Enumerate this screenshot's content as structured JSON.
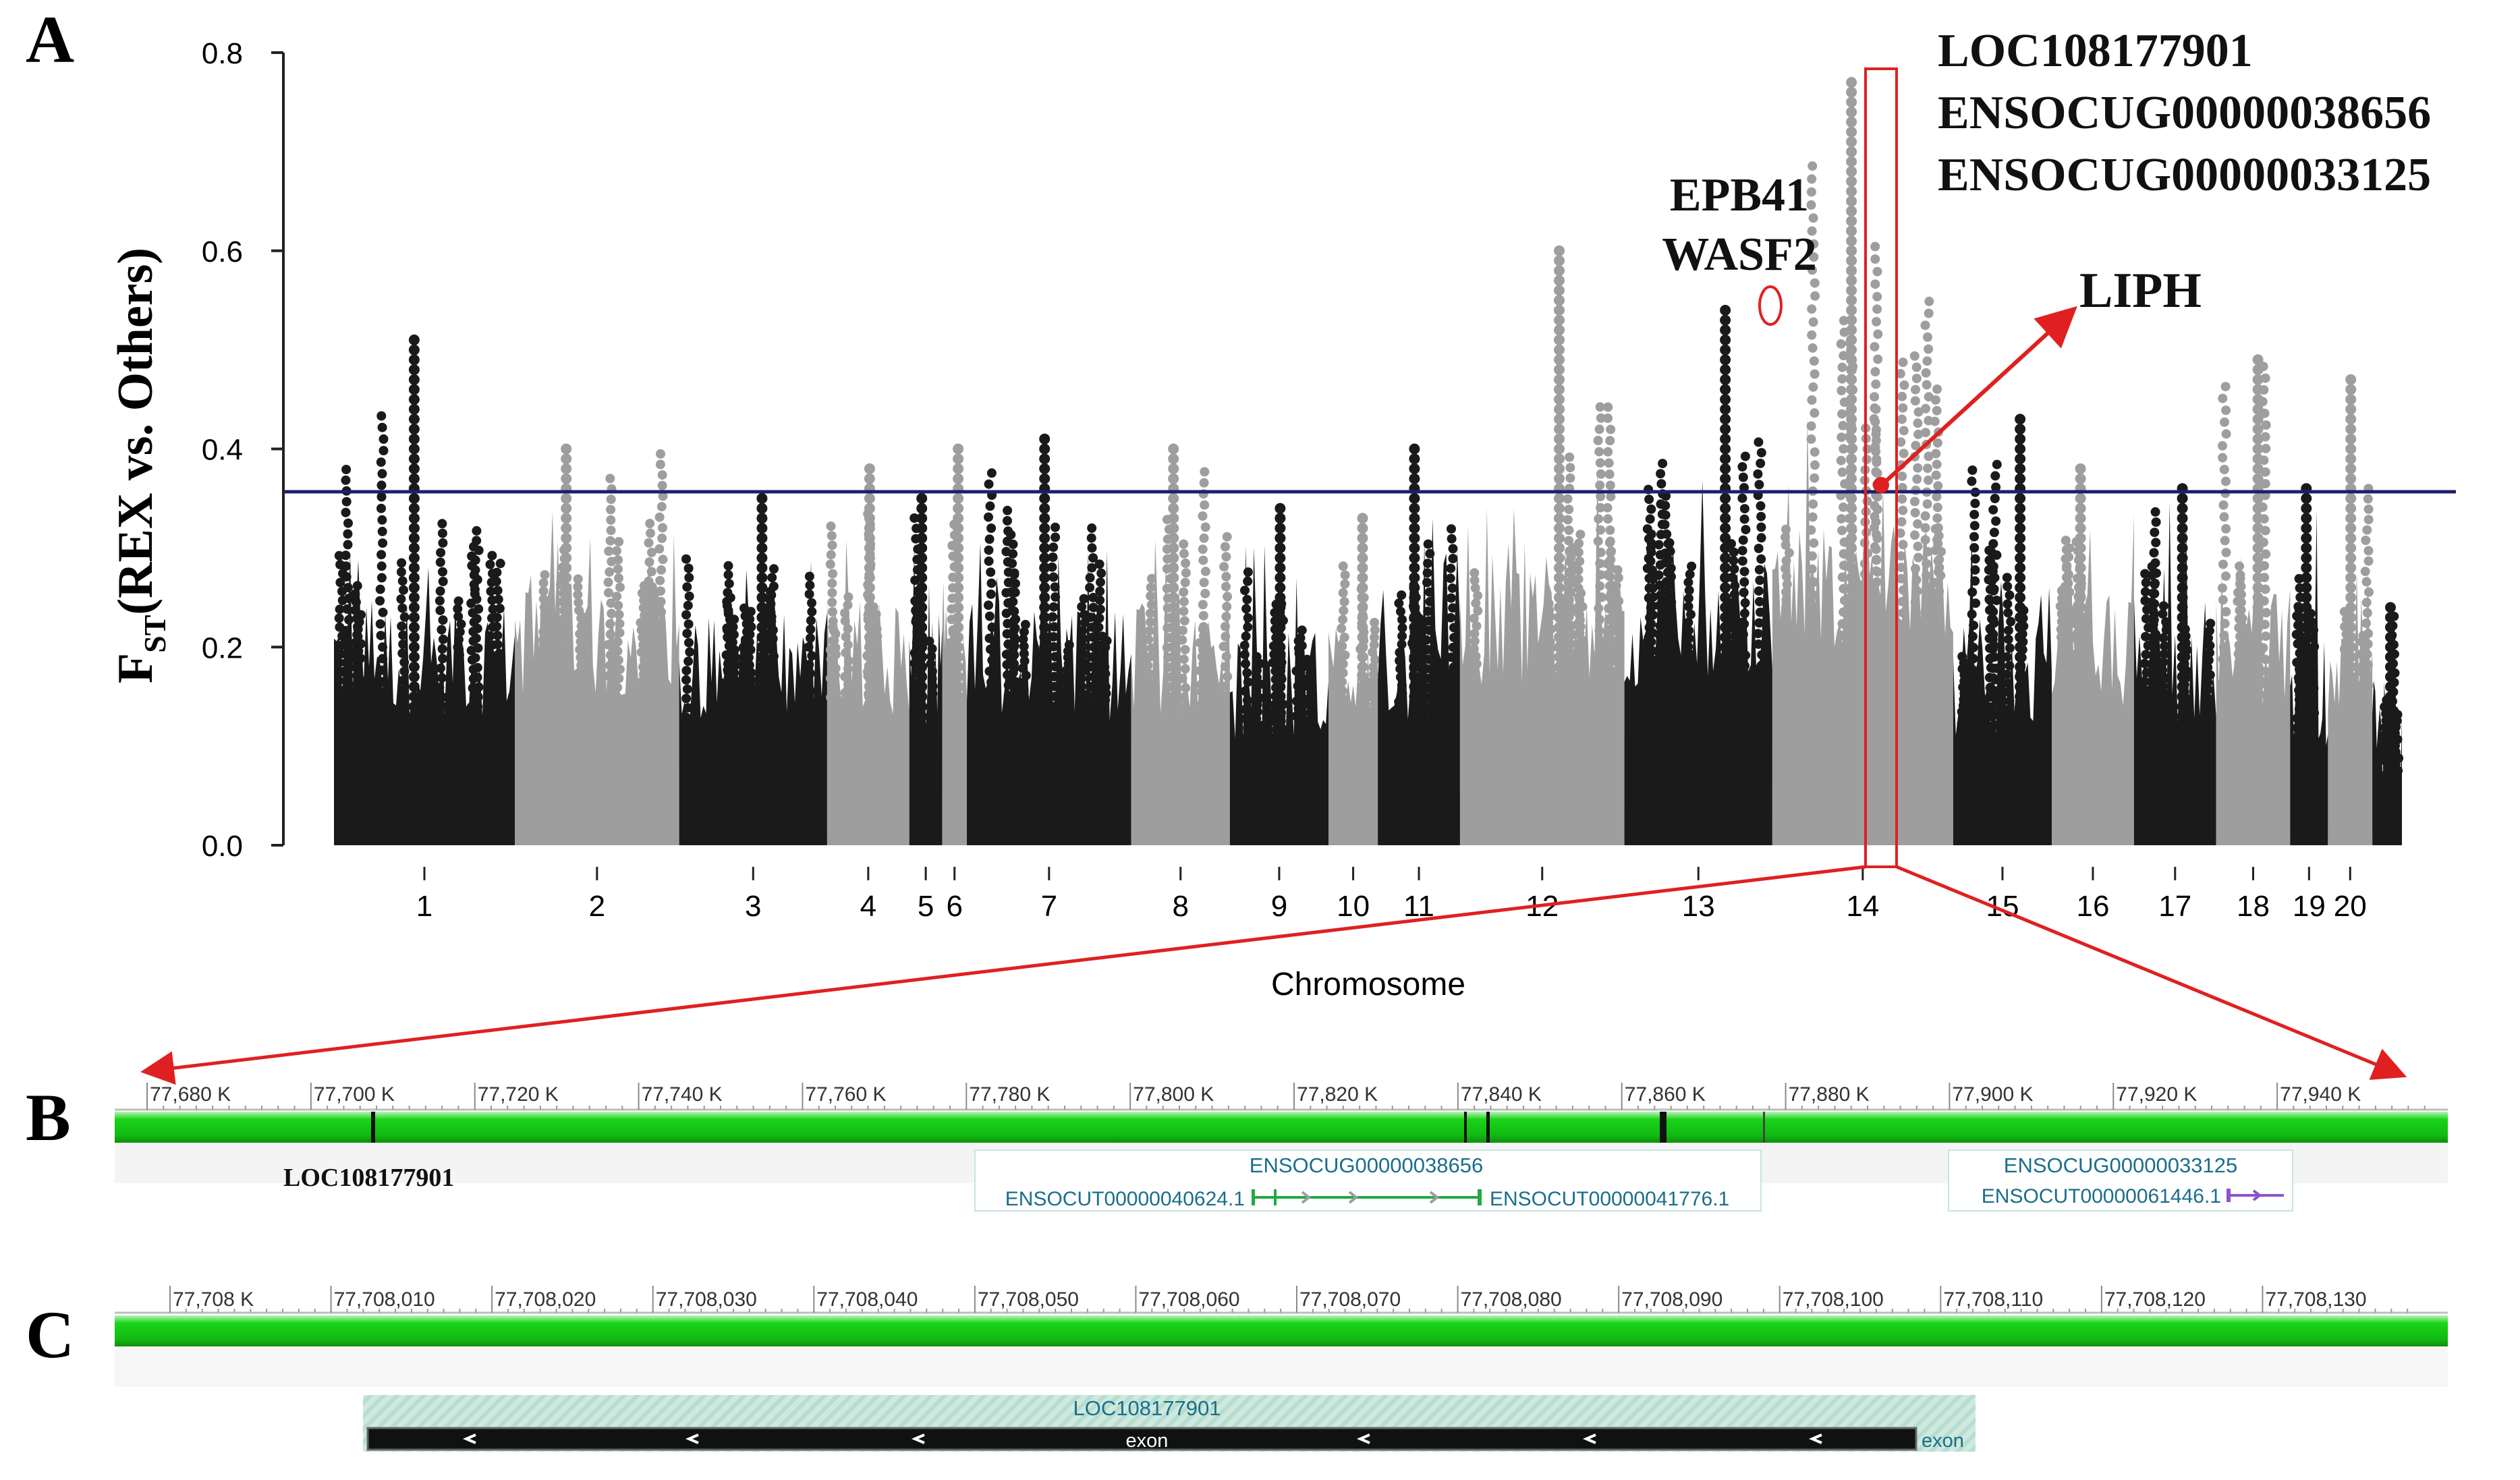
{
  "panel_labels": {
    "a": "A",
    "b": "B",
    "c": "C"
  },
  "chart_data": {
    "type": "scatter",
    "subtype": "manhattan",
    "title": "",
    "xlabel": "Chromosome",
    "ylabel_main": "F",
    "ylabel_sub": "ST",
    "ylabel_rest": "(REX vs. Others)",
    "ylim": [
      0,
      0.8
    ],
    "yticks": [
      "0.0",
      "0.2",
      "0.4",
      "0.6",
      "0.8"
    ],
    "threshold": 0.355,
    "chromosomes": [
      {
        "label": "1",
        "max": 0.515,
        "base": 0.13,
        "shade": "dark"
      },
      {
        "label": "2",
        "max": 0.41,
        "base": 0.15,
        "shade": "light"
      },
      {
        "label": "3",
        "max": 0.36,
        "base": 0.12,
        "shade": "dark"
      },
      {
        "label": "4",
        "max": 0.385,
        "base": 0.13,
        "shade": "light"
      },
      {
        "label": "5",
        "max": 0.36,
        "base": 0.1,
        "shade": "dark"
      },
      {
        "label": "6",
        "max": 0.41,
        "base": 0.1,
        "shade": "light"
      },
      {
        "label": "7",
        "max": 0.415,
        "base": 0.12,
        "shade": "dark"
      },
      {
        "label": "8",
        "max": 0.41,
        "base": 0.12,
        "shade": "light"
      },
      {
        "label": "9",
        "max": 0.345,
        "base": 0.1,
        "shade": "dark"
      },
      {
        "label": "10",
        "max": 0.34,
        "base": 0.12,
        "shade": "light"
      },
      {
        "label": "11",
        "max": 0.405,
        "base": 0.12,
        "shade": "dark"
      },
      {
        "label": "12",
        "max": 0.61,
        "base": 0.16,
        "shade": "light"
      },
      {
        "label": "13",
        "max": 0.55,
        "base": 0.16,
        "shade": "dark"
      },
      {
        "label": "14",
        "max": 0.775,
        "base": 0.2,
        "shade": "light"
      },
      {
        "label": "15",
        "max": 0.435,
        "base": 0.11,
        "shade": "dark"
      },
      {
        "label": "16",
        "max": 0.385,
        "base": 0.14,
        "shade": "light"
      },
      {
        "label": "17",
        "max": 0.365,
        "base": 0.12,
        "shade": "dark"
      },
      {
        "label": "18",
        "max": 0.5,
        "base": 0.14,
        "shade": "light"
      },
      {
        "label": "19",
        "max": 0.37,
        "base": 0.1,
        "shade": "dark"
      },
      {
        "label": "20",
        "max": 0.48,
        "base": 0.13,
        "shade": "light"
      },
      {
        "label": "",
        "max": 0.25,
        "base": 0.05,
        "shade": "dark"
      }
    ],
    "annotations": {
      "epb41": "EPB41",
      "wasf2": "WASF2",
      "liph": "LIPH",
      "loc": "LOC108177901",
      "ens1": "ENSOCUG00000038656",
      "ens2": "ENSOCUG00000033125"
    }
  },
  "panel_b": {
    "ticks": [
      "77,680 K",
      "77,700 K",
      "77,720 K",
      "77,740 K",
      "77,760 K",
      "77,780 K",
      "77,800 K",
      "77,820 K",
      "77,840 K",
      "77,860 K",
      "77,880 K",
      "77,900 K",
      "77,920 K",
      "77,940 K"
    ],
    "gene_loc": "LOC108177901",
    "gene1": "ENSOCUG00000038656",
    "transcript1a": "ENSOCUT00000040624.1",
    "transcript1b": "ENSOCUT00000041776.1",
    "gene2": "ENSOCUG00000033125",
    "transcript2": "ENSOCUT00000061446.1"
  },
  "panel_c": {
    "ticks": [
      "77,708 K",
      "77,708,010",
      "77,708,020",
      "77,708,030",
      "77,708,040",
      "77,708,050",
      "77,708,060",
      "77,708,070",
      "77,708,080",
      "77,708,090",
      "77,708,100",
      "77,708,110",
      "77,708,120",
      "77,708,130"
    ],
    "gene": "LOC108177901",
    "exon_label_inner": "exon",
    "exon_label_outer": "exon"
  },
  "colors": {
    "dark": "#1a1a1a",
    "light": "#9e9e9e",
    "threshold": "#1c1f6e",
    "red": "#e02020",
    "green": "#16cc16",
    "teal": "#1a6e8a"
  }
}
